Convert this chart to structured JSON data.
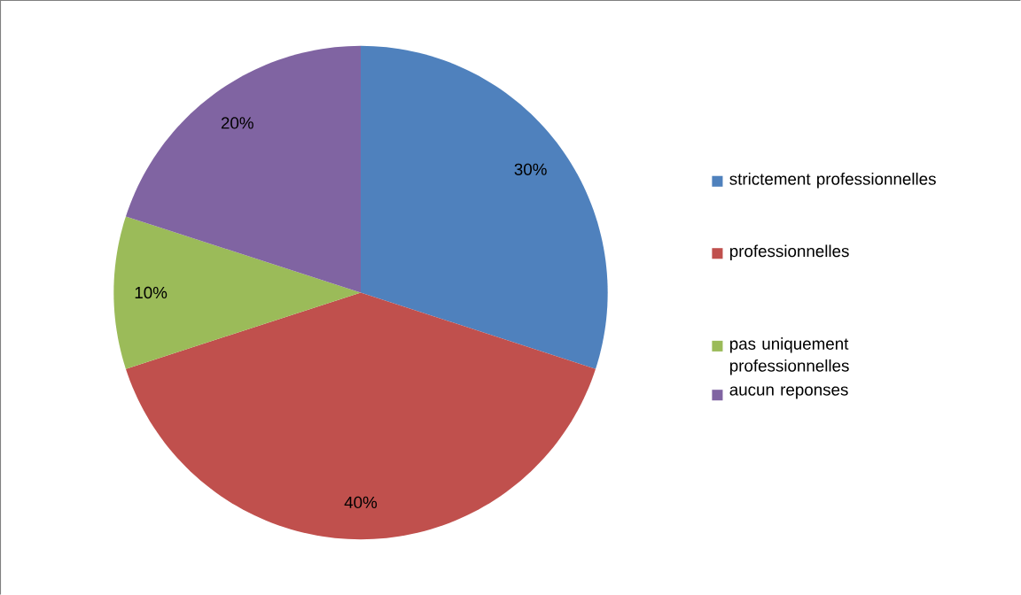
{
  "chart_data": {
    "type": "pie",
    "categories": [
      "strictement professionnelles",
      "professionnelles",
      "pas uniquement professionnelles",
      "aucun reponses"
    ],
    "values": [
      30,
      40,
      10,
      20
    ],
    "colors": [
      "#4f81bd",
      "#c0504d",
      "#9bbb59",
      "#8064a2"
    ],
    "value_labels": [
      "30%",
      "40%",
      "10%",
      "20%"
    ],
    "legend": "right"
  }
}
